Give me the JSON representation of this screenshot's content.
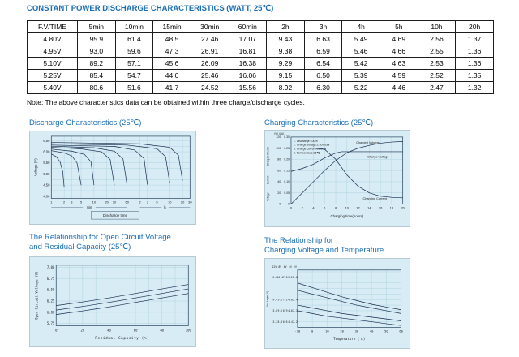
{
  "colors": {
    "accent": "#1a6eb5",
    "chart_bg": "#d8ecf6",
    "grid": "#9ec9d6",
    "frame": "#3c566e",
    "line": "#14294a",
    "text": "#222222"
  },
  "page": {
    "title": "CONSTANT POWER DISCHARGE CHARACTERISTICS (WATT, 25℃)",
    "note": "Note: The above characteristics data can be obtained within three charge/discharge cycles."
  },
  "table": {
    "headers": [
      "F.V/TIME",
      "5min",
      "10min",
      "15min",
      "30min",
      "60min",
      "2h",
      "3h",
      "4h",
      "5h",
      "10h",
      "20h"
    ],
    "rows": [
      [
        "4.80V",
        "95.9",
        "61.4",
        "48.5",
        "27.46",
        "17.07",
        "9.43",
        "6.63",
        "5.49",
        "4.69",
        "2.56",
        "1.37"
      ],
      [
        "4.95V",
        "93.0",
        "59.6",
        "47.3",
        "26.91",
        "16.81",
        "9.38",
        "6.59",
        "5.46",
        "4.66",
        "2.55",
        "1.36"
      ],
      [
        "5.10V",
        "89.2",
        "57.1",
        "45.6",
        "26.09",
        "16.38",
        "9.29",
        "6.54",
        "5.42",
        "4.63",
        "2.53",
        "1.36"
      ],
      [
        "5.25V",
        "85.4",
        "54.7",
        "44.0",
        "25.46",
        "16.06",
        "9.15",
        "6.50",
        "5.39",
        "4.59",
        "2.52",
        "1.35"
      ],
      [
        "5.40V",
        "80.6",
        "51.6",
        "41.7",
        "24.52",
        "15.56",
        "8.92",
        "6.30",
        "5.22",
        "4.46",
        "2.47",
        "1.32"
      ]
    ]
  },
  "headings": {
    "discharge": "Discharge Characteristics (25℃)",
    "charging": "Charging Characteristics (25℃)",
    "ocv_line1": "The Relationship for Open Circuit Voltage",
    "ocv_line2": "and Residual Capacity (25℃)",
    "temp_line1": "The Relationship for",
    "temp_line2": "Charging Voltage and Temperature"
  },
  "chart_data": [
    {
      "id": "discharge",
      "type": "line",
      "title": "Discharge Characteristics (25℃)",
      "xlabel": "Discharge time",
      "ylabel": "Voltage (V)",
      "x_unit_labels": [
        "min",
        "h"
      ],
      "ylim": [
        3.9,
        6.7
      ],
      "y_ticks": [
        4.0,
        4.5,
        5.0,
        5.5,
        6.0,
        6.5
      ],
      "xlim_minutes": [
        1,
        1800
      ],
      "x_ticks": [
        {
          "t": 1,
          "label": "1"
        },
        {
          "t": 2,
          "label": "2"
        },
        {
          "t": 3,
          "label": "3"
        },
        {
          "t": 5,
          "label": "5"
        },
        {
          "t": 10,
          "label": "10"
        },
        {
          "t": 20,
          "label": "20"
        },
        {
          "t": 30,
          "label": "30"
        },
        {
          "t": 60,
          "label": "60"
        },
        {
          "t": 120,
          "label": "2"
        },
        {
          "t": 180,
          "label": "3"
        },
        {
          "t": 300,
          "label": "5"
        },
        {
          "t": 600,
          "label": "10"
        },
        {
          "t": 1200,
          "label": "20"
        },
        {
          "t": 1800,
          "label": "30"
        }
      ],
      "series": [
        {
          "name": "curve-2min",
          "points": [
            [
              1,
              5.9
            ],
            [
              1.3,
              5.78
            ],
            [
              1.6,
              5.55
            ],
            [
              1.85,
              5.1
            ],
            [
              2,
              4.4
            ]
          ]
        },
        {
          "name": "curve-5min",
          "points": [
            [
              1,
              6.05
            ],
            [
              2,
              5.95
            ],
            [
              3,
              5.82
            ],
            [
              4,
              5.5
            ],
            [
              5,
              4.5
            ]
          ]
        },
        {
          "name": "curve-10min",
          "points": [
            [
              1,
              6.12
            ],
            [
              3,
              6.03
            ],
            [
              6,
              5.88
            ],
            [
              8.5,
              5.55
            ],
            [
              10,
              4.5
            ]
          ]
        },
        {
          "name": "curve-30min",
          "points": [
            [
              1,
              6.2
            ],
            [
              5,
              6.13
            ],
            [
              15,
              6.0
            ],
            [
              24,
              5.65
            ],
            [
              30,
              4.5
            ]
          ]
        },
        {
          "name": "curve-60min",
          "points": [
            [
              1,
              6.25
            ],
            [
              10,
              6.18
            ],
            [
              30,
              6.03
            ],
            [
              48,
              5.68
            ],
            [
              60,
              4.5
            ]
          ]
        },
        {
          "name": "curve-3h",
          "points": [
            [
              1,
              6.3
            ],
            [
              30,
              6.24
            ],
            [
              90,
              6.08
            ],
            [
              150,
              5.7
            ],
            [
              180,
              4.52
            ]
          ]
        },
        {
          "name": "curve-10h",
          "points": [
            [
              1,
              6.36
            ],
            [
              60,
              6.3
            ],
            [
              300,
              6.14
            ],
            [
              480,
              5.78
            ],
            [
              600,
              4.6
            ]
          ]
        },
        {
          "name": "curve-20h",
          "points": [
            [
              1,
              6.42
            ],
            [
              120,
              6.36
            ],
            [
              600,
              6.2
            ],
            [
              960,
              5.85
            ],
            [
              1200,
              4.7
            ]
          ]
        }
      ]
    },
    {
      "id": "charging",
      "type": "line",
      "title": "Charging Characteristics (25℃)",
      "xlabel": "Charging time(hours)",
      "x_ticks": [
        0,
        2,
        4,
        6,
        8,
        10,
        12,
        14,
        16,
        18,
        20
      ],
      "legend": [
        "1. Discharge:100%",
        "2. Charge voltage:2.45V/cell",
        "3. Charge current:0.25CA",
        "4. Temperature:25℃"
      ],
      "axis_columns": {
        "units_header": "(%) (CA)",
        "rotated_labels": [
          "Charged Volume",
          "Current",
          "Voltage"
        ],
        "rows": [
          [
            "120",
            "0.30"
          ],
          [
            "100",
            "0.25"
          ],
          [
            "80",
            "0.20"
          ],
          [
            "60",
            "0.15"
          ],
          [
            "40",
            "0.10"
          ],
          [
            "20",
            "0.05"
          ],
          [
            "0",
            "0"
          ]
        ]
      },
      "annotations": [
        {
          "text": "Charged Volume",
          "x": 128,
          "y": 16.5
        },
        {
          "text": "Charge Voltage",
          "x": 141,
          "y": 34
        },
        {
          "text": "Charging Current",
          "x": 137,
          "y": 86.5
        }
      ],
      "series": [
        {
          "name": "charged-volume",
          "scale": "percent",
          "points": [
            [
              0,
              0
            ],
            [
              2,
              20
            ],
            [
              4,
              40
            ],
            [
              6,
              60
            ],
            [
              8,
              78
            ],
            [
              10,
              92
            ],
            [
              12,
              100
            ],
            [
              14,
              105
            ],
            [
              16,
              109
            ],
            [
              18,
              111
            ],
            [
              20,
              112
            ]
          ]
        },
        {
          "name": "charge-voltage",
          "scale": "volt",
          "points": [
            [
              0,
              1.98
            ],
            [
              2,
              2.05
            ],
            [
              4,
              2.15
            ],
            [
              6,
              2.3
            ],
            [
              8,
              2.42
            ],
            [
              9,
              2.45
            ],
            [
              12,
              2.45
            ],
            [
              20,
              2.45
            ]
          ]
        },
        {
          "name": "charging-current",
          "scale": "ca",
          "points": [
            [
              0,
              0.25
            ],
            [
              4,
              0.25
            ],
            [
              6,
              0.245
            ],
            [
              8,
              0.2
            ],
            [
              10,
              0.13
            ],
            [
              12,
              0.08
            ],
            [
              14,
              0.05
            ],
            [
              16,
              0.035
            ],
            [
              18,
              0.03
            ],
            [
              20,
              0.028
            ]
          ]
        }
      ]
    },
    {
      "id": "ocv",
      "type": "line",
      "title": "The Relationship for Open Circuit Voltage and Residual Capacity (25℃)",
      "xlabel": "Residual Capacity (%)",
      "ylabel": "Open Circuit Voltage (V)",
      "x_ticks": [
        0,
        20,
        40,
        60,
        80,
        100
      ],
      "y_ticks": [
        5.75,
        6.0,
        6.25,
        6.5,
        6.75,
        7.0
      ],
      "ylim": [
        5.7,
        7.05
      ],
      "series": [
        {
          "name": "upper",
          "points": [
            [
              0,
              6.15
            ],
            [
              20,
              6.23
            ],
            [
              40,
              6.32
            ],
            [
              60,
              6.42
            ],
            [
              80,
              6.52
            ],
            [
              100,
              6.62
            ]
          ]
        },
        {
          "name": "middle",
          "points": [
            [
              0,
              6.05
            ],
            [
              20,
              6.13
            ],
            [
              40,
              6.22
            ],
            [
              60,
              6.32
            ],
            [
              80,
              6.42
            ],
            [
              100,
              6.52
            ]
          ]
        },
        {
          "name": "lower",
          "points": [
            [
              0,
              5.95
            ],
            [
              20,
              6.03
            ],
            [
              40,
              6.12
            ],
            [
              60,
              6.22
            ],
            [
              80,
              6.32
            ],
            [
              100,
              6.42
            ]
          ]
        }
      ]
    },
    {
      "id": "temp",
      "type": "line",
      "title": "The Relationship for Charging Voltage and Temperature",
      "xlabel": "Temperature (℃)",
      "ylabel": "Voltage(V)",
      "x_ticks": [
        -10,
        0,
        10,
        20,
        30,
        40,
        50,
        60
      ],
      "ylim_12v": [
        12.9,
        16.0
      ],
      "voltage_columns": {
        "headers": [
          "12V",
          "8V",
          "6V",
          "4V",
          "2V"
        ],
        "rows": [
          [
            "15.6",
            "10.4",
            "7.8",
            "5.2",
            "2.6"
          ],
          [
            "14.4",
            "9.6",
            "7.2",
            "4.8",
            "2.4"
          ],
          [
            "13.8",
            "9.2",
            "6.9",
            "4.6",
            "2.3"
          ],
          [
            "13.2",
            "8.8",
            "6.6",
            "4.4",
            "2.2"
          ]
        ]
      },
      "series": [
        {
          "name": "cycle-use-upper",
          "points": [
            [
              -10,
              15.3
            ],
            [
              0,
              15.05
            ],
            [
              10,
              14.8
            ],
            [
              20,
              14.55
            ],
            [
              30,
              14.35
            ],
            [
              40,
              14.15
            ],
            [
              50,
              14.0
            ],
            [
              60,
              13.85
            ]
          ]
        },
        {
          "name": "cycle-use-lower",
          "points": [
            [
              -10,
              14.9
            ],
            [
              0,
              14.7
            ],
            [
              10,
              14.5
            ],
            [
              20,
              14.3
            ],
            [
              30,
              14.1
            ],
            [
              40,
              13.95
            ],
            [
              50,
              13.8
            ],
            [
              60,
              13.65
            ]
          ]
        },
        {
          "name": "float-use-upper",
          "points": [
            [
              -10,
              14.1
            ],
            [
              0,
              13.95
            ],
            [
              10,
              13.8
            ],
            [
              20,
              13.65
            ],
            [
              30,
              13.55
            ],
            [
              40,
              13.45
            ],
            [
              50,
              13.35
            ],
            [
              60,
              13.25
            ]
          ]
        },
        {
          "name": "float-use-lower",
          "points": [
            [
              -10,
              13.8
            ],
            [
              0,
              13.65
            ],
            [
              10,
              13.5
            ],
            [
              20,
              13.4
            ],
            [
              30,
              13.3
            ],
            [
              40,
              13.2
            ],
            [
              50,
              13.1
            ],
            [
              60,
              13.0
            ]
          ]
        }
      ]
    }
  ]
}
